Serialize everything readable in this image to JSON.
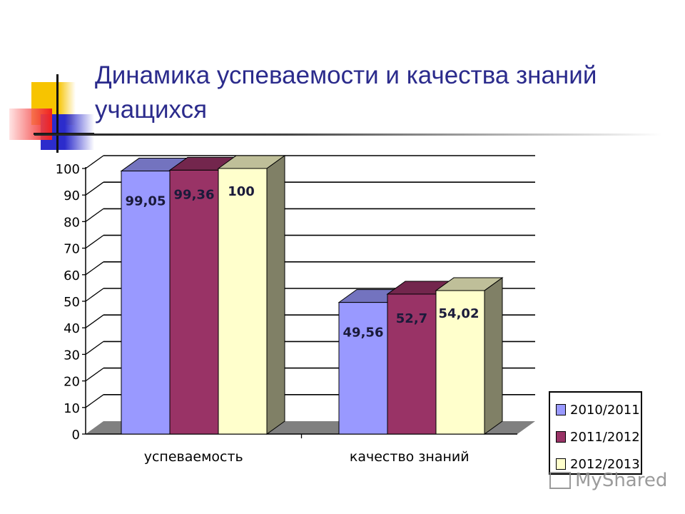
{
  "slide": {
    "title": "Динамика успеваемости и качества знаний учащихся",
    "watermark": "MyShared"
  },
  "chart_data": {
    "type": "bar",
    "style": "3d-clustered-column",
    "title": "Динамика успеваемости и качества знаний учащихся",
    "xlabel": "",
    "ylabel": "",
    "categories": [
      "успеваемость",
      "качество знаний"
    ],
    "series": [
      {
        "name": "2010/2011",
        "values": [
          99.05,
          49.56
        ],
        "labels": [
          "99,05",
          "49,56"
        ],
        "color": "#9999ff"
      },
      {
        "name": "2011/2012",
        "values": [
          99.36,
          52.7
        ],
        "labels": [
          "99,36",
          "52,7"
        ],
        "color": "#993366"
      },
      {
        "name": "2012/2013",
        "values": [
          100,
          54.02
        ],
        "labels": [
          "100",
          "54,02"
        ],
        "color": "#ffffcc"
      }
    ],
    "ylim": [
      0,
      100
    ],
    "yticks": [
      "0",
      "10",
      "20",
      "30",
      "40",
      "50",
      "60",
      "70",
      "80",
      "90",
      "100"
    ],
    "grid": true,
    "legend_position": "right-bottom"
  }
}
